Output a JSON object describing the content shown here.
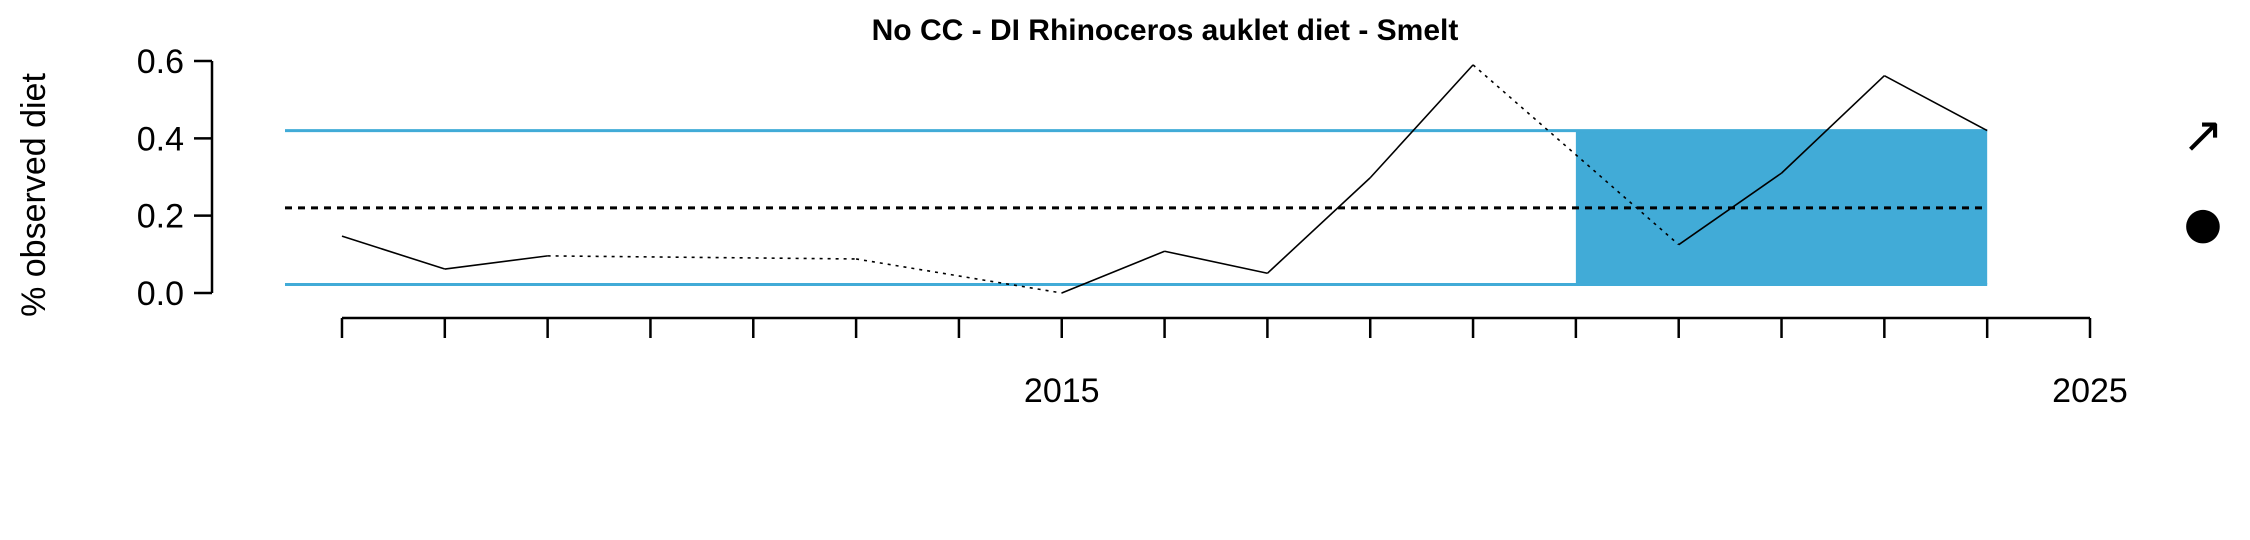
{
  "chart_data": {
    "type": "line",
    "title": "No CC - DI Rhinoceros auklet diet - Smelt",
    "xlabel": "",
    "ylabel": "% observed diet",
    "xlim": [
      2007.3,
      2025
    ],
    "ylim": [
      0,
      0.6
    ],
    "x_ticks": [
      2008,
      2009,
      2010,
      2011,
      2012,
      2013,
      2014,
      2015,
      2016,
      2017,
      2018,
      2019,
      2020,
      2021,
      2022,
      2023,
      2024,
      2025
    ],
    "x_tick_labels": [
      {
        "x": 2015,
        "label": "2015"
      },
      {
        "x": 2025,
        "label": "2025"
      }
    ],
    "y_ticks": [
      0.0,
      0.2,
      0.4,
      0.6
    ],
    "y_tick_labels": [
      "0.0",
      "0.2",
      "0.4",
      "0.6"
    ],
    "series": [
      {
        "x": [
          2008,
          2009,
          2010,
          2011,
          2012,
          2013,
          2014,
          2015,
          2016,
          2017,
          2018,
          2019,
          2020,
          2021,
          2022,
          2023,
          2024
        ],
        "values": [
          0.147,
          0.062,
          0.096,
          null,
          null,
          0.088,
          null,
          0.0,
          0.108,
          0.051,
          0.298,
          0.59,
          null,
          0.125,
          0.31,
          0.562,
          0.42
        ],
        "gap_fill": [
          {
            "x": [
              2010,
              2013
            ],
            "values": [
              0.096,
              0.088
            ]
          },
          {
            "x": [
              2013,
              2015
            ],
            "values": [
              0.088,
              0.0
            ]
          },
          {
            "x": [
              2019,
              2021
            ],
            "values": [
              0.59,
              0.125
            ]
          }
        ]
      }
    ],
    "long_term_mean": 0.22,
    "upper_sd": 0.42,
    "lower_sd": 0.022,
    "recent_window": {
      "x_start": 2020,
      "x_end": 2024,
      "y_low": 0.022,
      "y_high": 0.42
    },
    "trend_symbol": "↗",
    "mean_symbol": "●",
    "colors": {
      "line": "#000000",
      "sd_line": "#41ABD7",
      "shade": "#41ABD7",
      "mean_line": "#000000"
    }
  }
}
